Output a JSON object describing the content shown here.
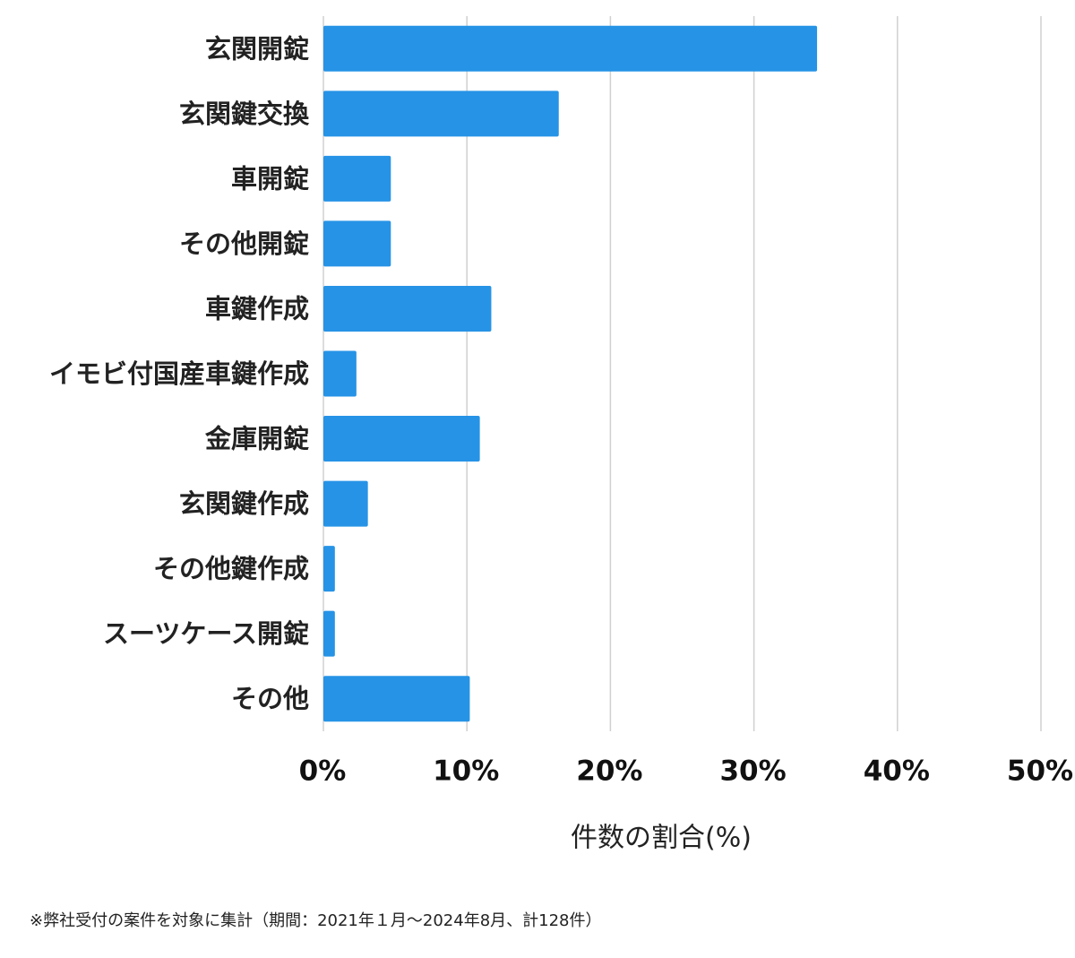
{
  "chart_data": {
    "type": "bar",
    "orientation": "horizontal",
    "categories": [
      "玄関開錠",
      "玄関鍵交換",
      "車開錠",
      "その他開錠",
      "車鍵作成",
      "イモビ付国産車鍵作成",
      "金庫開錠",
      "玄関鍵作成",
      "その他鍵作成",
      "スーツケース開錠",
      "その他"
    ],
    "values": [
      34.4,
      16.4,
      4.7,
      4.7,
      11.7,
      2.3,
      10.9,
      3.1,
      0.8,
      0.8,
      10.2
    ],
    "color": "#2693e6",
    "xlim": [
      0,
      50
    ],
    "xticks": [
      {
        "value": 0,
        "label": "0%"
      },
      {
        "value": 10,
        "label": "10%"
      },
      {
        "value": 20,
        "label": "20%"
      },
      {
        "value": 30,
        "label": "30%"
      },
      {
        "value": 40,
        "label": "40%"
      },
      {
        "value": 50,
        "label": "50%"
      }
    ],
    "x_label": "件数の割合(%)",
    "grid": true,
    "footnote": "※弊社受付の案件を対象に集計（期間：2021年１月〜2024年8月、計128件）"
  }
}
